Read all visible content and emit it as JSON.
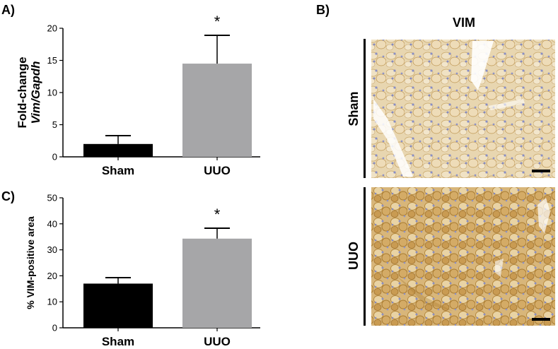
{
  "panels": {
    "a": "A)",
    "b": "B)",
    "c": "C)"
  },
  "micrographs": {
    "column_title": "VIM",
    "rows": [
      "Sham",
      "UUO"
    ]
  },
  "colors": {
    "sham_bar": "#000000",
    "uuo_bar": "#a6a6a8",
    "stain_light": "#e6d2a8",
    "stain_dark": "#c79b52",
    "nuclei": "#8a8fc4"
  },
  "chart_data": [
    {
      "panel": "A",
      "type": "bar",
      "categories": [
        "Sham",
        "UUO"
      ],
      "values": [
        2.0,
        14.5
      ],
      "errors": [
        1.3,
        4.4
      ],
      "significance": [
        "",
        "*"
      ],
      "ylabel_line1": "Fold-change",
      "ylabel_line2": "Vim/Gapdh",
      "ylim": [
        0,
        20
      ],
      "yticks": [
        "0",
        "5",
        "10",
        "15",
        "20"
      ],
      "ytick_values": [
        0,
        5,
        10,
        15,
        20
      ]
    },
    {
      "panel": "C",
      "type": "bar",
      "categories": [
        "Sham",
        "UUO"
      ],
      "values": [
        17.0,
        34.3
      ],
      "errors": [
        2.3,
        4.0
      ],
      "significance": [
        "",
        "*"
      ],
      "ylabel": "% VIM-positive area",
      "ylim": [
        0,
        50
      ],
      "yticks": [
        "0",
        "10",
        "20",
        "30",
        "40",
        "50"
      ],
      "ytick_values": [
        0,
        10,
        20,
        30,
        40,
        50
      ]
    }
  ]
}
